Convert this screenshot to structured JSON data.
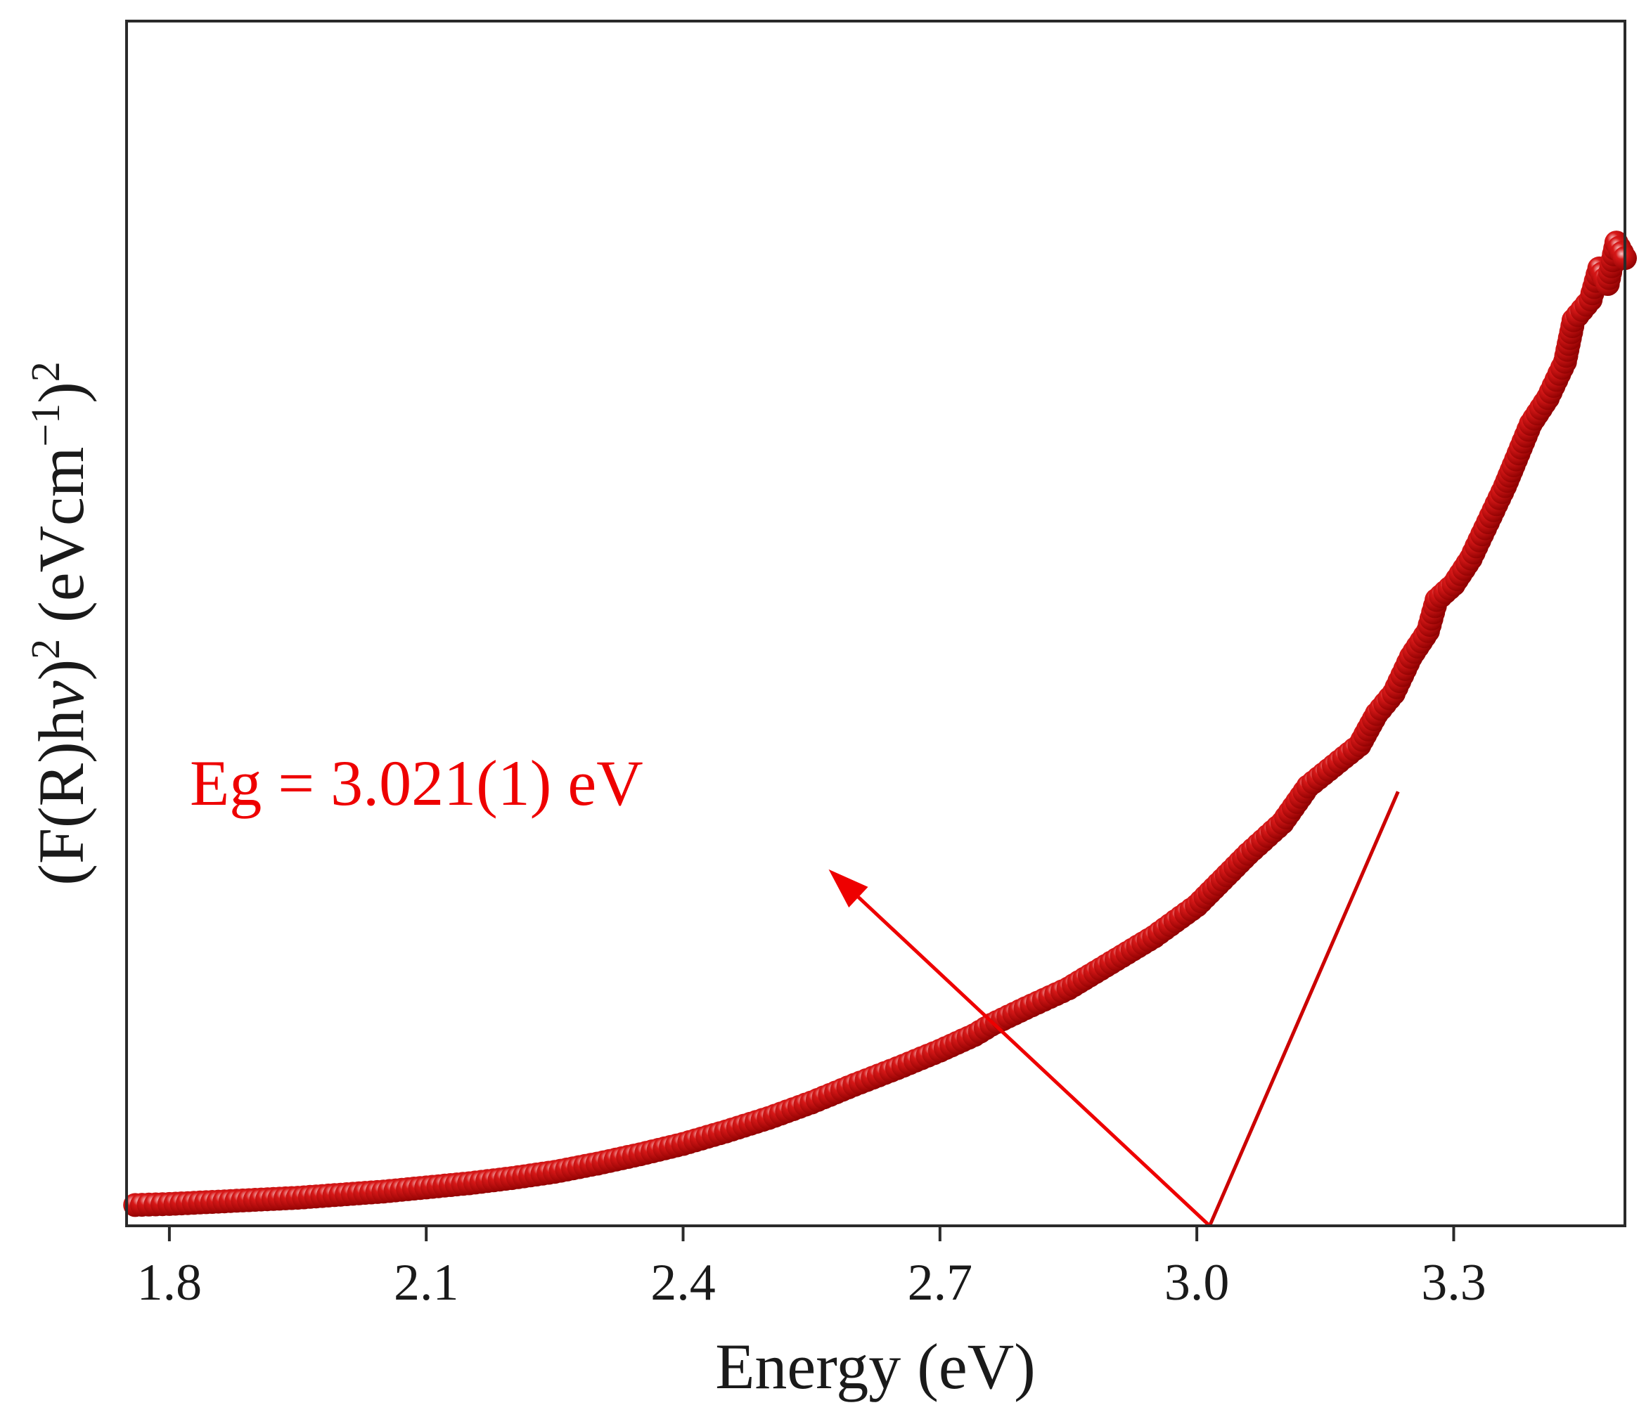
{
  "chart_data": {
    "type": "scatter",
    "title": "",
    "xlabel": "Energy (eV)",
    "ylabel_parts": {
      "part1": "(F(R)h",
      "nu": "ν",
      "part2": ")",
      "exp1": "2",
      "part3": " (eVcm",
      "exp2": "−1",
      "part4": ")",
      "exp3": "2"
    },
    "xlim": [
      1.75,
      3.5
    ],
    "ylim": [
      0,
      100
    ],
    "x_ticks": [
      1.8,
      2.1,
      2.4,
      2.7,
      3.0,
      3.3
    ],
    "x_tick_labels": [
      "1.8",
      "2.1",
      "2.4",
      "2.7",
      "3.0",
      "3.3"
    ],
    "y_ticks_shown": false,
    "series": [
      {
        "name": "(F(R)hν)²",
        "marker": "sphere",
        "color": "#cc0000",
        "points": [
          [
            1.76,
            1.6
          ],
          [
            1.8,
            1.7
          ],
          [
            1.85,
            1.9
          ],
          [
            1.9,
            2.1
          ],
          [
            1.95,
            2.3
          ],
          [
            2.0,
            2.6
          ],
          [
            2.05,
            2.9
          ],
          [
            2.1,
            3.3
          ],
          [
            2.15,
            3.7
          ],
          [
            2.2,
            4.2
          ],
          [
            2.25,
            4.8
          ],
          [
            2.3,
            5.6
          ],
          [
            2.35,
            6.5
          ],
          [
            2.4,
            7.5
          ],
          [
            2.45,
            8.7
          ],
          [
            2.5,
            10.0
          ],
          [
            2.55,
            11.5
          ],
          [
            2.6,
            13.2
          ],
          [
            2.65,
            14.8
          ],
          [
            2.7,
            16.5
          ],
          [
            2.74,
            18.0
          ],
          [
            2.76,
            19.0
          ],
          [
            2.8,
            20.6
          ],
          [
            2.85,
            22.5
          ],
          [
            2.9,
            25.0
          ],
          [
            2.95,
            27.5
          ],
          [
            3.0,
            30.5
          ],
          [
            3.03,
            33.0
          ],
          [
            3.06,
            35.5
          ],
          [
            3.1,
            38.5
          ],
          [
            3.13,
            42.0
          ],
          [
            3.16,
            44.0
          ],
          [
            3.19,
            46.0
          ],
          [
            3.21,
            49.0
          ],
          [
            3.23,
            51.0
          ],
          [
            3.25,
            54.5
          ],
          [
            3.27,
            57.0
          ],
          [
            3.28,
            60.0
          ],
          [
            3.3,
            61.5
          ],
          [
            3.32,
            64.0
          ],
          [
            3.34,
            67.5
          ],
          [
            3.36,
            71.0
          ],
          [
            3.37,
            73.0
          ],
          [
            3.39,
            77.0
          ],
          [
            3.41,
            79.5
          ],
          [
            3.43,
            83.0
          ],
          [
            3.44,
            87.0
          ],
          [
            3.46,
            89.0
          ],
          [
            3.47,
            92.0
          ],
          [
            3.48,
            90.5
          ],
          [
            3.49,
            94.5
          ],
          [
            3.5,
            93.0
          ]
        ]
      }
    ],
    "fit_line": {
      "x": [
        3.015,
        3.235
      ],
      "y": [
        0,
        41.5
      ]
    },
    "annotation": {
      "text": "Eg = 3.021(1) eV",
      "color": "#ee0000",
      "arrow_from": [
        3.015,
        0
      ],
      "arrow_to": [
        2.57,
        34.0
      ]
    }
  }
}
